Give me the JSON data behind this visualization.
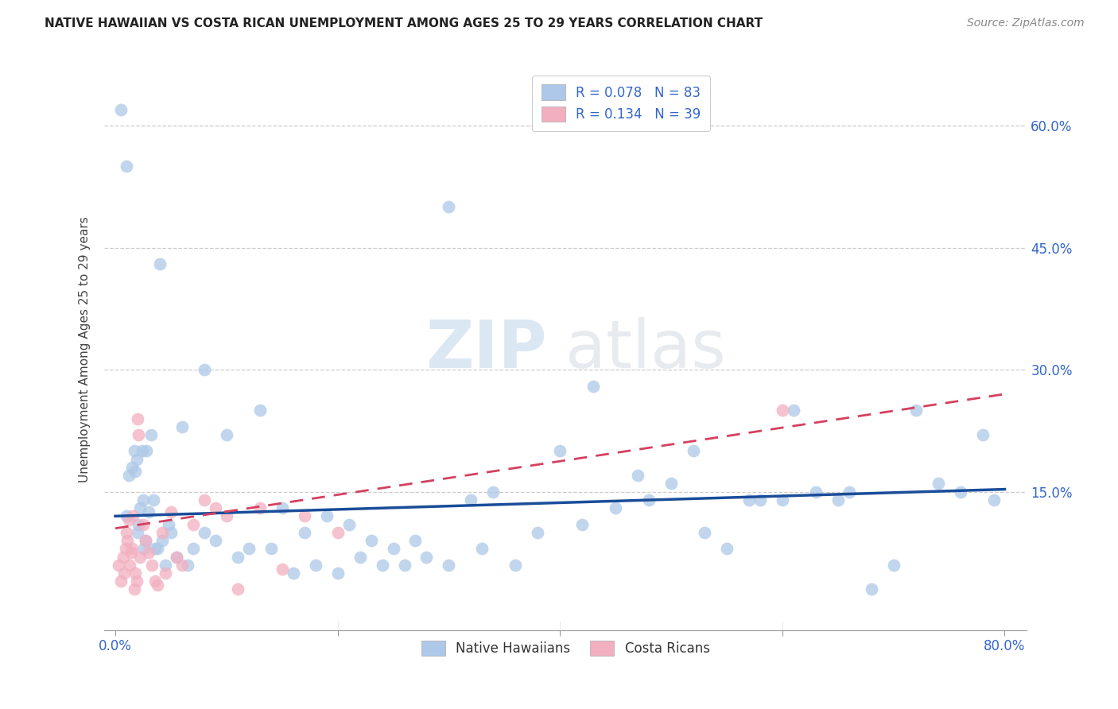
{
  "title": "NATIVE HAWAIIAN VS COSTA RICAN UNEMPLOYMENT AMONG AGES 25 TO 29 YEARS CORRELATION CHART",
  "source": "Source: ZipAtlas.com",
  "ylabel": "Unemployment Among Ages 25 to 29 years",
  "xlim": [
    -0.01,
    0.82
  ],
  "ylim": [
    -0.02,
    0.67
  ],
  "xticks": [
    0.0,
    0.2,
    0.4,
    0.6,
    0.8
  ],
  "yticks": [
    0.15,
    0.3,
    0.45,
    0.6
  ],
  "ytick_labels": [
    "15.0%",
    "30.0%",
    "45.0%",
    "60.0%"
  ],
  "xtick_labels_show": [
    "0.0%",
    "",
    "",
    "",
    "80.0%"
  ],
  "legend_r_blue": "R = 0.078",
  "legend_n_blue": "N = 83",
  "legend_r_pink": "R = 0.134",
  "legend_n_pink": "N = 39",
  "blue_color": "#adc8e8",
  "pink_color": "#f2afc0",
  "blue_line_color": "#1a4d99",
  "pink_line_color": "#d44060",
  "watermark_zip": "ZIP",
  "watermark_atlas": "atlas",
  "background_color": "#ffffff",
  "blue_trend_x0": 0.0,
  "blue_trend_y0": 0.12,
  "blue_trend_x1": 0.8,
  "blue_trend_y1": 0.153,
  "pink_trend_x0": 0.0,
  "pink_trend_y0": 0.105,
  "pink_trend_x1": 0.8,
  "pink_trend_y1": 0.27,
  "native_hawaiians_x": [
    0.005,
    0.01,
    0.01,
    0.012,
    0.015,
    0.017,
    0.018,
    0.019,
    0.02,
    0.021,
    0.022,
    0.024,
    0.025,
    0.026,
    0.027,
    0.028,
    0.03,
    0.032,
    0.034,
    0.036,
    0.038,
    0.04,
    0.042,
    0.045,
    0.048,
    0.05,
    0.055,
    0.06,
    0.065,
    0.07,
    0.08,
    0.09,
    0.1,
    0.11,
    0.12,
    0.13,
    0.14,
    0.15,
    0.16,
    0.17,
    0.18,
    0.19,
    0.2,
    0.21,
    0.22,
    0.23,
    0.24,
    0.25,
    0.26,
    0.27,
    0.28,
    0.3,
    0.32,
    0.33,
    0.34,
    0.36,
    0.38,
    0.4,
    0.42,
    0.43,
    0.45,
    0.47,
    0.48,
    0.5,
    0.52,
    0.53,
    0.55,
    0.57,
    0.58,
    0.6,
    0.61,
    0.63,
    0.65,
    0.66,
    0.68,
    0.7,
    0.72,
    0.74,
    0.76,
    0.78,
    0.79,
    0.08,
    0.3
  ],
  "native_hawaiians_y": [
    0.62,
    0.55,
    0.12,
    0.17,
    0.18,
    0.2,
    0.175,
    0.19,
    0.1,
    0.11,
    0.13,
    0.2,
    0.14,
    0.08,
    0.09,
    0.2,
    0.125,
    0.22,
    0.14,
    0.08,
    0.08,
    0.43,
    0.09,
    0.06,
    0.11,
    0.1,
    0.07,
    0.23,
    0.06,
    0.08,
    0.1,
    0.09,
    0.22,
    0.07,
    0.08,
    0.25,
    0.08,
    0.13,
    0.05,
    0.1,
    0.06,
    0.12,
    0.05,
    0.11,
    0.07,
    0.09,
    0.06,
    0.08,
    0.06,
    0.09,
    0.07,
    0.06,
    0.14,
    0.08,
    0.15,
    0.06,
    0.1,
    0.2,
    0.11,
    0.28,
    0.13,
    0.17,
    0.14,
    0.16,
    0.2,
    0.1,
    0.08,
    0.14,
    0.14,
    0.14,
    0.25,
    0.15,
    0.14,
    0.15,
    0.03,
    0.06,
    0.25,
    0.16,
    0.15,
    0.22,
    0.14,
    0.3,
    0.5
  ],
  "costa_ricans_x": [
    0.003,
    0.005,
    0.007,
    0.008,
    0.009,
    0.01,
    0.011,
    0.012,
    0.013,
    0.014,
    0.015,
    0.016,
    0.017,
    0.018,
    0.019,
    0.02,
    0.021,
    0.022,
    0.025,
    0.027,
    0.03,
    0.033,
    0.036,
    0.038,
    0.042,
    0.045,
    0.05,
    0.055,
    0.06,
    0.07,
    0.08,
    0.09,
    0.1,
    0.11,
    0.13,
    0.15,
    0.17,
    0.2,
    0.6
  ],
  "costa_ricans_y": [
    0.06,
    0.04,
    0.07,
    0.05,
    0.08,
    0.1,
    0.09,
    0.115,
    0.06,
    0.075,
    0.08,
    0.12,
    0.03,
    0.05,
    0.04,
    0.24,
    0.22,
    0.07,
    0.11,
    0.09,
    0.075,
    0.06,
    0.04,
    0.035,
    0.1,
    0.05,
    0.125,
    0.07,
    0.06,
    0.11,
    0.14,
    0.13,
    0.12,
    0.03,
    0.13,
    0.055,
    0.12,
    0.1,
    0.25
  ]
}
